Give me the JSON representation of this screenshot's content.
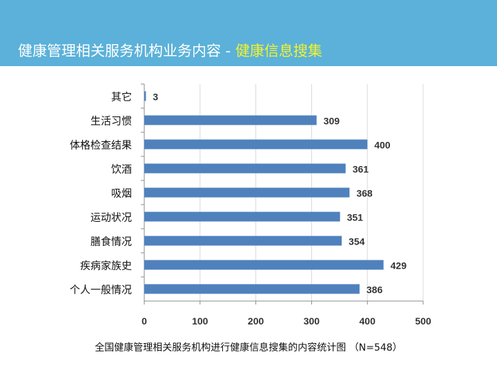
{
  "header": {
    "title_main": "健康管理相关服务机构业务内容 - ",
    "title_highlight": "健康信息搜集"
  },
  "colors": {
    "banner": "#5BB1D9",
    "bar": "#4F81BD",
    "highlight": "#F2F22E"
  },
  "chart_data": {
    "type": "bar",
    "orientation": "horizontal",
    "categories": [
      "其它",
      "生活习惯",
      "体格检查结果",
      "饮酒",
      "吸烟",
      "运动状况",
      "膳食情况",
      "疾病家族史",
      "个人一般情况"
    ],
    "values": [
      3,
      309,
      400,
      361,
      368,
      351,
      354,
      429,
      386
    ],
    "xlim": [
      0,
      500
    ],
    "xticks": [
      "0",
      "100",
      "200",
      "300",
      "400",
      "500"
    ],
    "grid": true,
    "caption": "全国健康管理相关服务机构进行健康信息搜集的内容统计图 （N=548）"
  }
}
